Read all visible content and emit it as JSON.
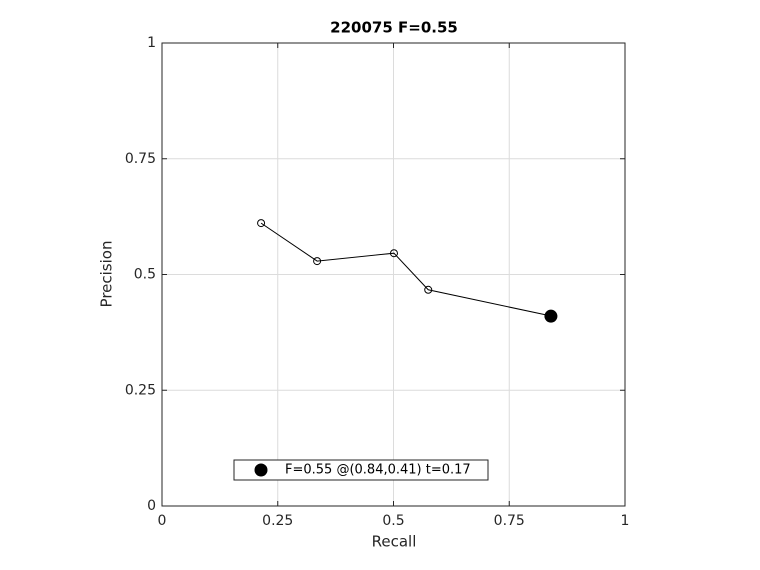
{
  "chart_data": {
    "type": "line",
    "title": "220075 F=0.55",
    "xlabel": "Recall",
    "ylabel": "Precision",
    "xlim": [
      0,
      1
    ],
    "ylim": [
      0,
      1
    ],
    "xticks": [
      0,
      0.25,
      0.5,
      0.75,
      1
    ],
    "yticks": [
      0,
      0.25,
      0.5,
      0.75,
      1
    ],
    "grid": true,
    "legend": "south",
    "series": [
      {
        "color": "#000000",
        "filled": false,
        "line": true,
        "x": [
          0.214,
          0.335,
          0.501,
          0.575,
          0.842
        ],
        "values": [
          0.611,
          0.529,
          0.546,
          0.467,
          0.41
        ]
      },
      {
        "name": "F=0.55 @(0.84,0.41) t=0.17",
        "color": "#000000",
        "filled": true,
        "line": false,
        "x": [
          0.84
        ],
        "values": [
          0.41
        ]
      }
    ]
  }
}
